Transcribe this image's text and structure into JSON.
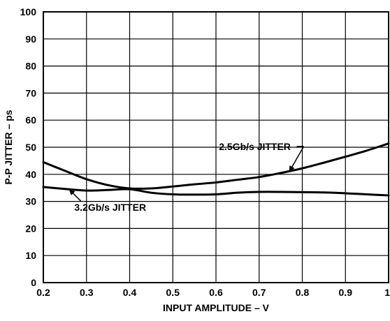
{
  "chart_data": {
    "type": "line",
    "xlabel": "INPUT AMPLITUDE – V",
    "ylabel": "P-P JITTER – ps",
    "xlim": [
      0.2,
      1.0
    ],
    "ylim": [
      0,
      100
    ],
    "x_ticks": [
      "0.2",
      "0.3",
      "0.4",
      "0.5",
      "0.6",
      "0.7",
      "0.8",
      "0.9",
      "1"
    ],
    "y_ticks": [
      "0",
      "10",
      "20",
      "30",
      "40",
      "50",
      "60",
      "70",
      "80",
      "90",
      "100"
    ],
    "grid": true,
    "colors": {
      "line": "#000000",
      "grid": "#000000"
    },
    "series": [
      {
        "x": [
          0.2,
          0.25,
          0.3,
          0.35,
          0.4,
          0.45,
          0.5,
          0.55,
          0.6,
          0.65,
          0.7,
          0.75,
          0.8,
          0.85,
          0.9,
          0.95,
          1.0
        ],
        "values": [
          44.5,
          41.3,
          38.2,
          36.0,
          34.8,
          34.8,
          35.5,
          36.3,
          37.0,
          38.0,
          39.0,
          40.5,
          42.2,
          44.3,
          46.5,
          48.8,
          51.4
        ]
      },
      {
        "x": [
          0.2,
          0.25,
          0.3,
          0.35,
          0.4,
          0.45,
          0.5,
          0.55,
          0.6,
          0.65,
          0.7,
          0.75,
          0.8,
          0.85,
          0.9,
          0.95,
          1.0
        ],
        "values": [
          35.3,
          34.6,
          34.0,
          34.2,
          34.5,
          33.2,
          32.6,
          32.5,
          32.6,
          33.2,
          33.5,
          33.5,
          33.4,
          33.3,
          33.0,
          32.6,
          32.2
        ]
      }
    ],
    "annotations": [
      {
        "text": "2.5Gb/s JITTER",
        "x": 0.69,
        "y": 49,
        "point_x": 0.77,
        "point_y": 41.0
      },
      {
        "text": "3.2Gb/s JITTER",
        "x": 0.355,
        "y": 26.5,
        "point_x": 0.26,
        "point_y": 34.4
      }
    ]
  }
}
